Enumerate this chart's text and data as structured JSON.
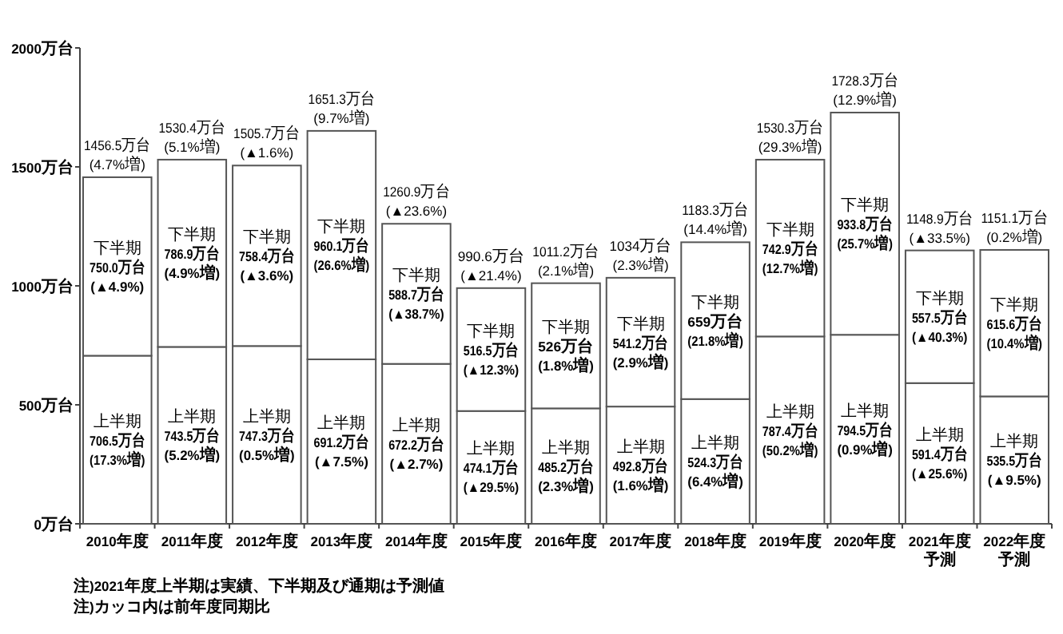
{
  "chart_data": {
    "type": "bar",
    "stacked": true,
    "legend": false,
    "grid": false,
    "categories": [
      "2010年度",
      "2011年度",
      "2012年度",
      "2013年度",
      "2014年度",
      "2015年度",
      "2016年度",
      "2017年度",
      "2018年度",
      "2019年度",
      "2020年度",
      "2021年度予測",
      "2022年度予測"
    ],
    "series": [
      {
        "name": "上半期",
        "color": "#ffffff",
        "values": [
          706.5,
          743.5,
          747.3,
          691.2,
          672.2,
          474.1,
          485.2,
          492.8,
          524.3,
          787.4,
          794.5,
          591.4,
          535.5
        ],
        "value_labels": [
          "706.5万台\n(17.3%増)",
          "743.5万台\n(5.2%増)",
          "747.3万台\n(0.5%増)",
          "691.2万台\n(▲7.5%)",
          "672.2万台\n(▲2.7%)",
          "474.1万台\n(▲29.5%)",
          "485.2万台\n(2.3%増)",
          "492.8万台\n(1.6%増)",
          "524.3万台\n(6.4%増)",
          "787.4万台\n(50.2%増)",
          "794.5万台\n(0.9%増)",
          "591.4万台\n(▲25.6%)",
          "535.5万台\n(▲9.5%)"
        ]
      },
      {
        "name": "下半期",
        "color": "#ffffff",
        "values": [
          750.0,
          786.9,
          758.4,
          960.1,
          588.7,
          516.5,
          526,
          541.2,
          659,
          742.9,
          933.8,
          557.5,
          615.6
        ],
        "value_labels": [
          "750.0万台\n(▲4.9%)",
          "786.9万台\n(4.9%増)",
          "758.4万台\n(▲3.6%)",
          "960.1万台\n(26.6%増)",
          "588.7万台\n(▲38.7%)",
          "516.5万台\n(▲12.3%)",
          "526万台\n(1.8%増)",
          "541.2万台\n(2.9%増)",
          "659万台\n(21.8%増)",
          "742.9万台\n(12.7%増)",
          "933.8万台\n(25.7%増)",
          "557.5万台\n(▲40.3%)",
          "615.6万台\n(10.4%増)"
        ]
      }
    ],
    "totals": [
      "1456.5万台\n(4.7%増)",
      "1530.4万台\n(5.1%増)",
      "1505.7万台\n(▲1.6%)",
      "1651.3万台\n(9.7%増)",
      "1260.9万台\n(▲23.6%)",
      "990.6万台\n(▲21.4%)",
      "1011.2万台\n(2.1%増)",
      "1034万台\n(2.3%増)",
      "1183.3万台\n(14.4%増)",
      "1530.3万台\n(29.3%増)",
      "1728.3万台\n(12.9%増)",
      "1148.9万台\n(▲33.5%)",
      "1151.1万台\n(0.2%増)"
    ],
    "ylim": [
      0,
      2000
    ],
    "yticks": [
      {
        "value": 0,
        "label": "0万台"
      },
      {
        "value": 500,
        "label": "500万台"
      },
      {
        "value": 1000,
        "label": "1000万台"
      },
      {
        "value": 1500,
        "label": "1500万台"
      },
      {
        "value": 2000,
        "label": "2000万台"
      }
    ],
    "annotations": [
      "注)2021年度上半期は実績、下半期及び通期は予測値",
      "注)カッコ内は前年度同期比"
    ]
  }
}
